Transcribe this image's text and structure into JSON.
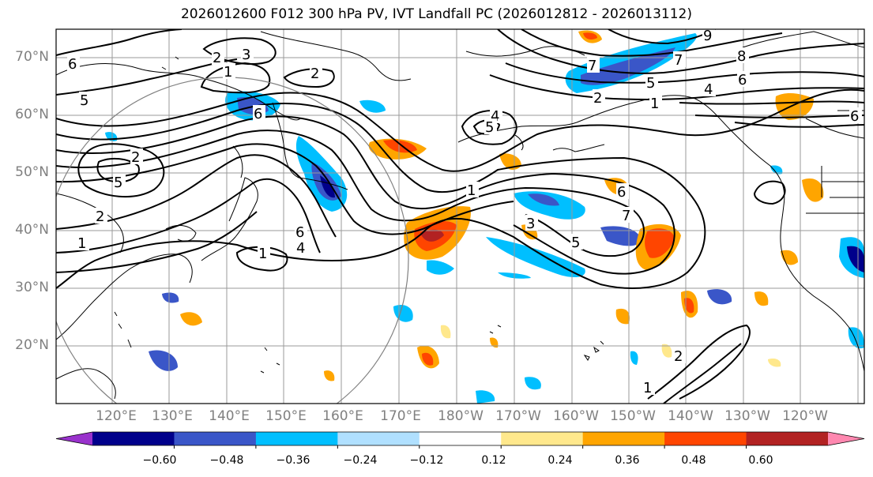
{
  "title": "2026012600 F012 300 hPa PV, IVT Landfall PC (2026012812 - 2026013112)",
  "lat_labels": [
    "70°N",
    "60°N",
    "50°N",
    "40°N",
    "30°N",
    "20°N"
  ],
  "lon_labels": [
    "120°E",
    "130°E",
    "140°E",
    "150°E",
    "160°E",
    "170°E",
    "180°W",
    "170°W",
    "160°W",
    "150°W",
    "140°W",
    "130°W",
    "120°W"
  ],
  "contour_labels": [
    "1",
    "2",
    "3",
    "4",
    "5",
    "6",
    "7",
    "8",
    "9"
  ],
  "colorbar": {
    "ticks": [
      "−0.60",
      "−0.48",
      "−0.36",
      "−0.24",
      "−0.12",
      "0.12",
      "0.24",
      "0.36",
      "0.48",
      "0.60"
    ],
    "colors": [
      "#9932CC",
      "#00008B",
      "#3A56C8",
      "#00BFFF",
      "#B0E0FF",
      "#FFFFFF",
      "#FFE88C",
      "#FFA500",
      "#FF4500",
      "#B22222",
      "#FF88B0"
    ]
  }
}
